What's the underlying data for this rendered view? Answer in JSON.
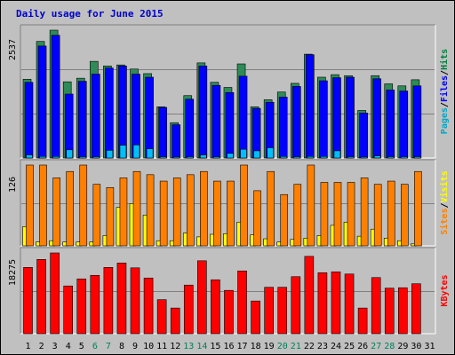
{
  "title": "Daily usage for June 2015",
  "chart_data": [
    {
      "type": "bar",
      "panel": "top",
      "ymax_label": "2537",
      "right_label": {
        "parts": [
          "Pages",
          "/",
          "Files",
          "/",
          "Hits"
        ],
        "colors": [
          "#00a6c8",
          "#000000",
          "#0000ff",
          "#000000",
          "#008040"
        ]
      },
      "categories": [
        "1",
        "2",
        "3",
        "4",
        "5",
        "6",
        "7",
        "8",
        "9",
        "10",
        "11",
        "12",
        "13",
        "14",
        "15",
        "16",
        "17",
        "18",
        "19",
        "20",
        "21",
        "22",
        "23",
        "24",
        "25",
        "26",
        "27",
        "28",
        "29",
        "30",
        "31"
      ],
      "series": [
        {
          "name": "Hits",
          "color": "#2e8b57",
          "values": [
            1540,
            2280,
            2500,
            1490,
            1560,
            1890,
            1800,
            1820,
            1740,
            1650,
            1000,
            690,
            1220,
            1860,
            1480,
            1380,
            1840,
            1000,
            1140,
            1290,
            1460,
            2030,
            1580,
            1630,
            1610,
            930,
            1610,
            1450,
            1410,
            1530,
            0
          ]
        },
        {
          "name": "Files",
          "color": "#0000ff",
          "values": [
            1480,
            2190,
            2400,
            1250,
            1500,
            1640,
            1760,
            1800,
            1640,
            1580,
            990,
            650,
            1150,
            1800,
            1420,
            1280,
            1600,
            970,
            1090,
            1190,
            1400,
            2020,
            1510,
            1570,
            1580,
            880,
            1550,
            1330,
            1310,
            1410,
            0
          ]
        },
        {
          "name": "Pages",
          "color": "#00bfff",
          "values": [
            60,
            30,
            30,
            160,
            25,
            25,
            150,
            250,
            255,
            180,
            25,
            20,
            25,
            60,
            25,
            90,
            170,
            140,
            200,
            30,
            25,
            30,
            30,
            140,
            25,
            20,
            40,
            25,
            25,
            25,
            0
          ]
        }
      ]
    },
    {
      "type": "bar",
      "panel": "middle",
      "ymax_label": "126",
      "right_label": {
        "parts": [
          "Sites",
          "/",
          "Visits"
        ],
        "colors": [
          "#ff8000",
          "#000000",
          "#ffff00"
        ]
      },
      "categories": [
        "1",
        "2",
        "3",
        "4",
        "5",
        "6",
        "7",
        "8",
        "9",
        "10",
        "11",
        "12",
        "13",
        "14",
        "15",
        "16",
        "17",
        "18",
        "19",
        "20",
        "21",
        "22",
        "23",
        "24",
        "25",
        "26",
        "27",
        "28",
        "29",
        "30",
        "31"
      ],
      "series": [
        {
          "name": "Sites",
          "color": "#ff8000",
          "values": [
            126,
            126,
            106,
            116,
            126,
            96,
            91,
            106,
            116,
            111,
            101,
            106,
            111,
            116,
            101,
            101,
            126,
            86,
            116,
            80,
            96,
            126,
            99,
            99,
            99,
            106,
            96,
            101,
            96,
            116,
            0
          ]
        },
        {
          "name": "Visits",
          "color": "#ffff00",
          "values": [
            30,
            6,
            8,
            6,
            6,
            6,
            16,
            60,
            66,
            48,
            8,
            8,
            20,
            14,
            18,
            19,
            37,
            17,
            11,
            6,
            10,
            12,
            16,
            32,
            37,
            15,
            26,
            12,
            8,
            3,
            0
          ]
        }
      ]
    },
    {
      "type": "bar",
      "panel": "bottom",
      "ymax_label": "18275",
      "right_label": {
        "parts": [
          "KBytes"
        ],
        "colors": [
          "#ff0000"
        ]
      },
      "categories": [
        "1",
        "2",
        "3",
        "4",
        "5",
        "6",
        "7",
        "8",
        "9",
        "10",
        "11",
        "12",
        "13",
        "14",
        "15",
        "16",
        "17",
        "18",
        "19",
        "20",
        "21",
        "22",
        "23",
        "24",
        "25",
        "26",
        "27",
        "28",
        "29",
        "30",
        "31"
      ],
      "series": [
        {
          "name": "KBytes",
          "color": "#ff0000",
          "values": [
            15000,
            16800,
            18275,
            10800,
            12400,
            13200,
            15000,
            16000,
            14900,
            12600,
            7700,
            5800,
            11000,
            16500,
            12200,
            9800,
            14200,
            7400,
            10500,
            10500,
            12900,
            17500,
            13800,
            14000,
            13500,
            5800,
            12700,
            10300,
            10400,
            11300,
            0
          ]
        }
      ]
    }
  ],
  "weekend_days": [
    6,
    7,
    13,
    14,
    20,
    21,
    27,
    28
  ],
  "colors": {
    "background": "#c0c0c0",
    "title": "#0000cc",
    "weekday_label": "#000000",
    "weekend_label": "#00805a"
  }
}
